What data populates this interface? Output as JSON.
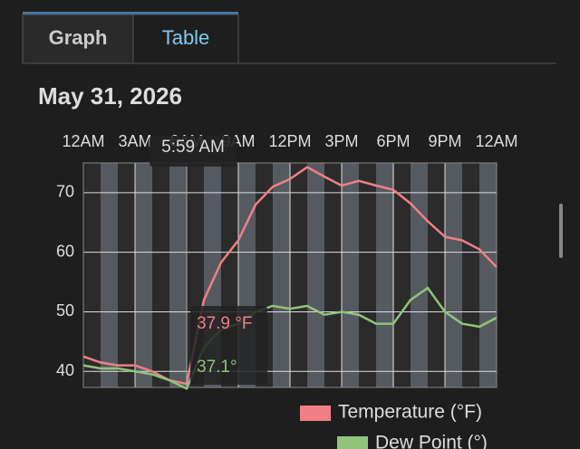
{
  "tabs": [
    "Graph",
    "Table"
  ],
  "date": "May 31, 2026",
  "chart": {
    "type": "line",
    "x": [
      0,
      1,
      2,
      3,
      4,
      5,
      6,
      7,
      8,
      9,
      10,
      11,
      12,
      13,
      14,
      15,
      16,
      17,
      18,
      19,
      20,
      21,
      22,
      23,
      24
    ],
    "xlim": [
      0,
      24
    ],
    "xticks": [
      {
        "value": 0,
        "label": "12AM"
      },
      {
        "value": 3,
        "label": "3AM"
      },
      {
        "value": 6,
        "label": "6AM"
      },
      {
        "value": 9,
        "label": "9AM"
      },
      {
        "value": 12,
        "label": "12PM"
      },
      {
        "value": 15,
        "label": "3PM"
      },
      {
        "value": 18,
        "label": "6PM"
      },
      {
        "value": 21,
        "label": "9PM"
      },
      {
        "value": 24,
        "label": "12AM"
      }
    ],
    "ylim": [
      37.3,
      75
    ],
    "yticks": [
      40,
      50,
      60,
      70
    ],
    "grid": true,
    "series": [
      {
        "name": "Temperature (°F)",
        "color": "#f07f86",
        "values": [
          42.5,
          41.5,
          41,
          41,
          40,
          38.5,
          37.9,
          52,
          58.3,
          62,
          68,
          71,
          72.3,
          74.3,
          72.7,
          71.2,
          72,
          71.2,
          70.5,
          68.2,
          65.2,
          62.6,
          62,
          60.5,
          57.5
        ]
      },
      {
        "name": "Dew Point (°)",
        "color": "#8fc47a",
        "values": [
          41,
          40.5,
          40.5,
          40,
          39.5,
          38.5,
          37.1,
          44,
          47,
          48,
          50,
          51,
          50.5,
          51,
          49.5,
          50,
          49.5,
          48,
          48,
          52,
          54,
          50,
          48,
          47.5,
          49
        ]
      }
    ],
    "tooltip": {
      "time": "5:59 AM",
      "values": [
        "37.9 °F",
        "37.1°"
      ]
    }
  }
}
